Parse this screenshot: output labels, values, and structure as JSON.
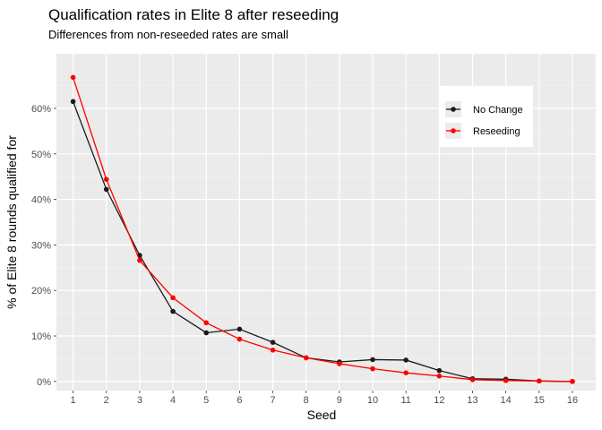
{
  "chart_data": {
    "type": "line",
    "title": "Qualification rates in Elite 8 after reseeding",
    "subtitle": "Differences from non-reseeded rates are small",
    "xlabel": "Seed",
    "ylabel": "% of Elite 8 rounds qualified for",
    "x": [
      1,
      2,
      3,
      4,
      5,
      6,
      7,
      8,
      9,
      10,
      11,
      12,
      13,
      14,
      15,
      16
    ],
    "xlim": [
      0.5,
      16.7
    ],
    "ylim": [
      -0.02,
      0.72
    ],
    "yticks": [
      0,
      0.1,
      0.2,
      0.3,
      0.4,
      0.5,
      0.6
    ],
    "ytick_labels": [
      "0%",
      "10%",
      "20%",
      "30%",
      "40%",
      "50%",
      "60%"
    ],
    "grid": true,
    "legend_position": "top-right",
    "series": [
      {
        "name": "No Change",
        "color": "#1a1a1a",
        "values": [
          0.615,
          0.422,
          0.277,
          0.154,
          0.107,
          0.115,
          0.086,
          0.052,
          0.043,
          0.048,
          0.047,
          0.024,
          0.006,
          0.005,
          0.001,
          0.0
        ]
      },
      {
        "name": "Reseeding",
        "color": "#ff0000",
        "values": [
          0.668,
          0.444,
          0.266,
          0.184,
          0.129,
          0.093,
          0.069,
          0.052,
          0.039,
          0.028,
          0.019,
          0.012,
          0.004,
          0.002,
          0.001,
          0.0
        ]
      }
    ]
  }
}
